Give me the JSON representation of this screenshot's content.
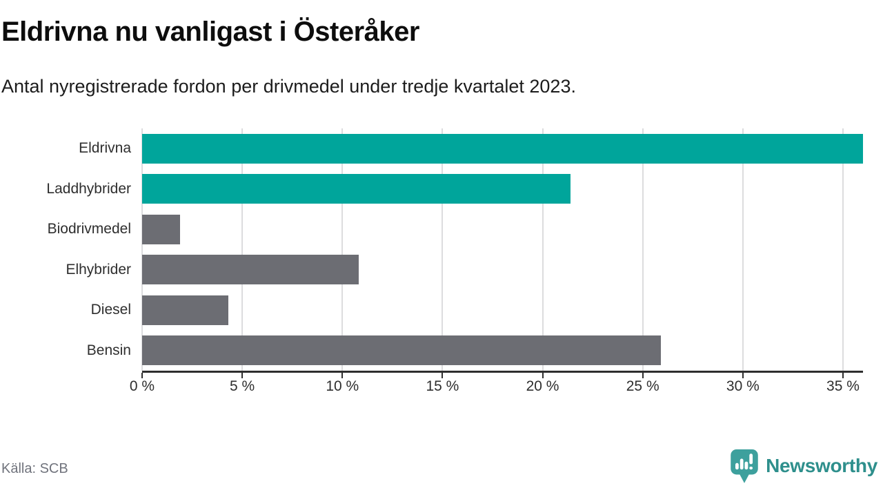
{
  "header": {
    "title": "Eldrivna nu vanligast i Österåker",
    "subtitle": "Antal nyregistrerade fordon per drivmedel under tredje kvartalet 2023."
  },
  "footer": {
    "source": "Källa: SCB",
    "brand": "Newsworthy"
  },
  "colors": {
    "highlight_bar": "#00a59b",
    "default_bar": "#6c6d73",
    "gridline": "#dcdcde",
    "axis": "#2e2e2e",
    "brand": "#2e8f8c",
    "source_text": "#70737c"
  },
  "chart_data": {
    "type": "bar",
    "orientation": "horizontal",
    "title": "Eldrivna nu vanligast i Österåker",
    "subtitle": "Antal nyregistrerade fordon per drivmedel under tredje kvartalet 2023.",
    "source": "Källa: SCB",
    "categories": [
      "Eldrivna",
      "Laddhybrider",
      "Biodrivmedel",
      "Elhybrider",
      "Diesel",
      "Bensin"
    ],
    "values": [
      36.0,
      21.4,
      1.9,
      10.8,
      4.3,
      25.9
    ],
    "bar_colors": [
      "#00a59b",
      "#00a59b",
      "#6c6d73",
      "#6c6d73",
      "#6c6d73",
      "#6c6d73"
    ],
    "xlabel": "",
    "ylabel": "",
    "xlim": [
      0,
      36
    ],
    "x_tick_values": [
      0,
      5,
      10,
      15,
      20,
      25,
      30,
      35
    ],
    "x_tick_labels": [
      "0 %",
      "5 %",
      "10 %",
      "15 %",
      "20 %",
      "25 %",
      "30 %",
      "35 %"
    ],
    "grid": "vertical",
    "legend": "none"
  }
}
